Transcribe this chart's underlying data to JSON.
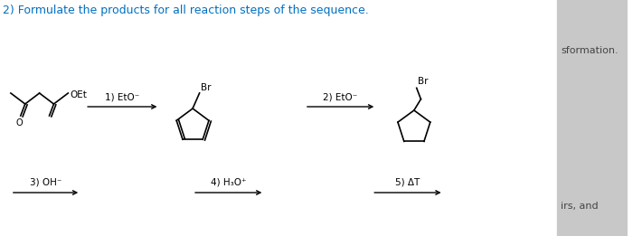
{
  "title": "2) Formulate the products for all reaction steps of the sequence.",
  "title_color": "#0070C0",
  "title_fontsize": 9,
  "bg_color": "#ffffff",
  "right_bg_color": "#c8c8c8",
  "right_text": "sformation.",
  "right_text2": "irs, and",
  "step1_label": "1) EtO⁻",
  "step2_label": "2) EtO⁻",
  "step3_label": "3) OH⁻",
  "step4_label": "4) H₃O⁺",
  "step5_label": "5) ΔT"
}
